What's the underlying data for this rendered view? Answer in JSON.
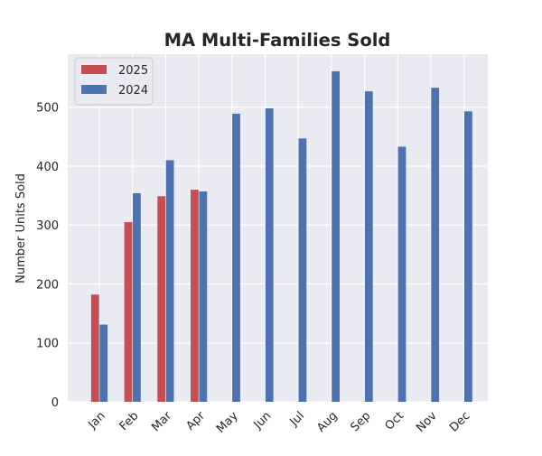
{
  "chart_data": {
    "type": "bar",
    "title": "MA Multi-Families Sold",
    "xlabel": "",
    "ylabel": "Number Units Sold",
    "categories": [
      "Jan",
      "Feb",
      "Mar",
      "Apr",
      "May",
      "Jun",
      "Jul",
      "Aug",
      "Sep",
      "Oct",
      "Nov",
      "Dec"
    ],
    "series": [
      {
        "name": "2025",
        "color": "#c44e52",
        "values": [
          182,
          305,
          349,
          360,
          null,
          null,
          null,
          null,
          null,
          null,
          null,
          null
        ]
      },
      {
        "name": "2024",
        "color": "#4c72b0",
        "values": [
          131,
          354,
          410,
          357,
          489,
          498,
          447,
          561,
          527,
          433,
          533,
          493
        ]
      }
    ],
    "ylim": [
      0,
      590
    ],
    "yticks": [
      0,
      100,
      200,
      300,
      400,
      500
    ],
    "grid": true,
    "legend_position": "top-left",
    "background": "#eaeaf2"
  }
}
